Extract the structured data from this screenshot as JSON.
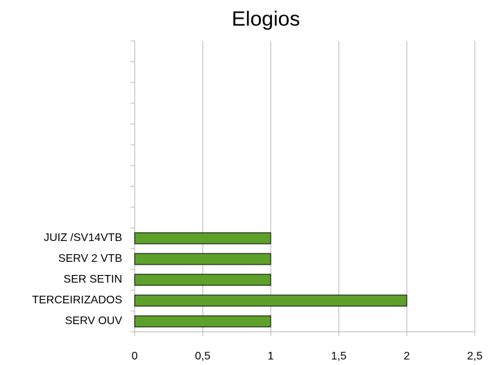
{
  "chart_data": {
    "type": "bar",
    "orientation": "horizontal",
    "title": "Elogios",
    "categories": [
      "SERV OUV",
      "TERCEIRIZADOS",
      "SER SETIN",
      "SERV 2 VTB",
      "JUIZ /SV14VTB",
      null,
      null,
      null,
      null,
      null,
      null,
      null,
      null,
      null
    ],
    "values": [
      1,
      2,
      1,
      1,
      1,
      null,
      null,
      null,
      null,
      null,
      null,
      null,
      null,
      null
    ],
    "color": "#5ea12a",
    "xlim": [
      0,
      2.5
    ],
    "xticks": [
      0,
      {
        "value": 0.5,
        "label": "0,5"
      },
      1,
      {
        "value": 1.5,
        "label": "1,5"
      },
      2,
      {
        "value": 2.5,
        "label": "2,5"
      }
    ],
    "grid": true
  }
}
